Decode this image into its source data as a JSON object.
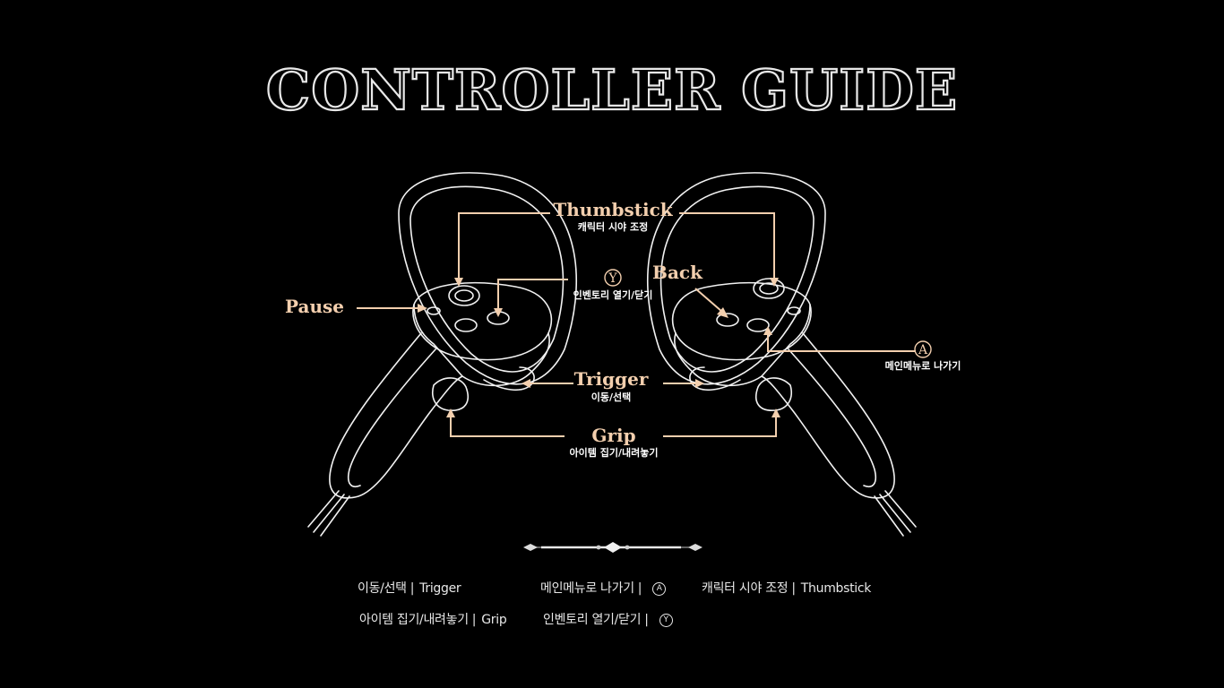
{
  "title": "CONTROLLER GUIDE",
  "callouts": {
    "thumbstick": {
      "label": "Thumbstick",
      "desc": "캐릭터 시야 조정"
    },
    "y_button": {
      "glyph": "Y",
      "desc": "인벤토리 열기/닫기"
    },
    "back": {
      "label": "Back"
    },
    "pause": {
      "label": "Pause"
    },
    "a_button": {
      "glyph": "A",
      "desc": "메인메뉴로 나가기"
    },
    "trigger": {
      "label": "Trigger",
      "desc": "이동/선택"
    },
    "grip": {
      "label": "Grip",
      "desc": "아이템 집기/내려놓기"
    }
  },
  "legend": [
    {
      "desc": "이동/선택",
      "sep": "|",
      "key": "Trigger"
    },
    {
      "desc": "메인메뉴로 나가기",
      "sep": "|",
      "key": "A"
    },
    {
      "desc": "캐릭터 시야 조정",
      "sep": "|",
      "key": "Thumbstick"
    },
    {
      "desc": "아이템 집기/내려놓기",
      "sep": "|",
      "key": "Grip"
    },
    {
      "desc": "인벤토리 열기/닫기",
      "sep": "|",
      "key": "Y"
    }
  ],
  "colors": {
    "background": "#000000",
    "accent": "#f3cfae",
    "line": "#f2f2f2"
  }
}
